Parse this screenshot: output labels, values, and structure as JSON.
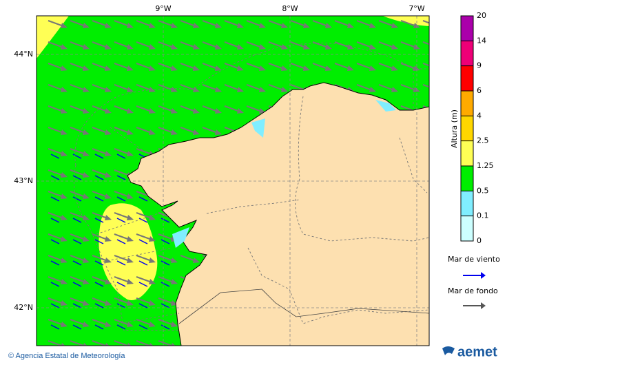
{
  "map": {
    "lon_labels": [
      "9°W",
      "8°W",
      "7°W"
    ],
    "lat_labels": [
      "44°N",
      "43°N",
      "42°N"
    ]
  },
  "colorbar": {
    "label": "Altura (m)",
    "ticks": [
      0,
      0.1,
      0.5,
      1.25,
      2.5,
      4,
      6,
      9,
      14,
      20
    ],
    "colors": [
      "#ccffff",
      "#80eeff",
      "#00ee00",
      "#ffff55",
      "#ffd700",
      "#ffaa00",
      "#ff0000",
      "#ee0077",
      "#aa00aa"
    ]
  },
  "legend": [
    {
      "name": "Mar de viento",
      "color": "#0000ee"
    },
    {
      "name": "Mar de fondo",
      "color": "#555555"
    }
  ],
  "footer": {
    "credit": "© Agencia Estatal de Meteorología",
    "logo": "aemet"
  }
}
